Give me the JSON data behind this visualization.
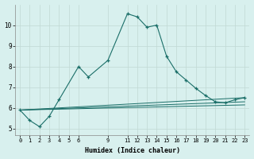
{
  "xlabel": "Humidex (Indice chaleur)",
  "bg_color": "#d8f0ee",
  "grid_color": "#c0d8d4",
  "line_color": "#1a6e68",
  "ylim": [
    4.7,
    11.0
  ],
  "xlim": [
    -0.5,
    23.5
  ],
  "yticks": [
    5,
    6,
    7,
    8,
    9,
    10
  ],
  "xticks": [
    0,
    1,
    2,
    3,
    4,
    5,
    6,
    9,
    11,
    12,
    13,
    14,
    15,
    16,
    17,
    18,
    19,
    20,
    21,
    22,
    23
  ],
  "line1_x": [
    0,
    1,
    2,
    3,
    4,
    6,
    7,
    9,
    11,
    12,
    13,
    14,
    15,
    16,
    17,
    18,
    19,
    20,
    21,
    22,
    23
  ],
  "line1_y": [
    5.9,
    5.4,
    5.1,
    5.6,
    6.4,
    8.0,
    7.5,
    8.3,
    10.55,
    10.4,
    9.9,
    10.0,
    8.5,
    7.75,
    7.35,
    6.95,
    6.6,
    6.3,
    6.25,
    6.4,
    6.5
  ],
  "line2_x": [
    0,
    23
  ],
  "line2_y": [
    5.9,
    6.5
  ],
  "line3_x": [
    0,
    23
  ],
  "line3_y": [
    5.9,
    6.3
  ],
  "line4_x": [
    0,
    23
  ],
  "line4_y": [
    5.9,
    6.15
  ]
}
